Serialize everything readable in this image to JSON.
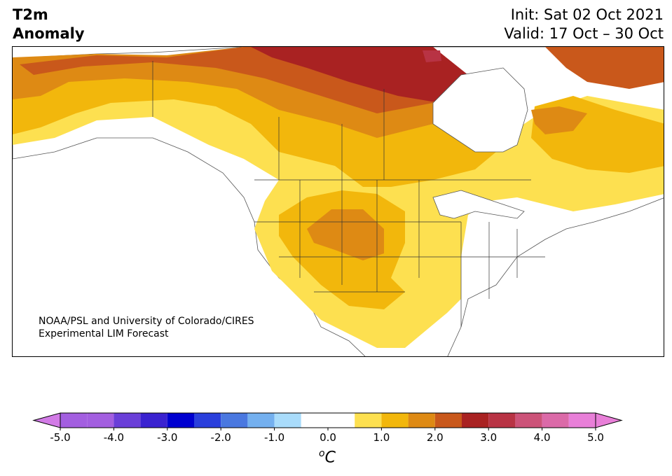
{
  "title": {
    "left_line1": "T2m",
    "left_line2": "Anomaly",
    "right_line1": "Init: Sat 02 Oct 2021",
    "right_line2": "Valid: 17 Oct – 30 Oct"
  },
  "credit": {
    "line1": "NOAA/PSL and University of Colorado/CIRES",
    "line2": "Experimental LIM Forecast"
  },
  "colorbar": {
    "unit_degree": "o",
    "unit_symbol": "C",
    "ticks": [
      "-5.0",
      "-4.0",
      "-3.0",
      "-2.0",
      "-1.0",
      "0.0",
      "1.0",
      "2.0",
      "3.0",
      "4.0",
      "5.0"
    ],
    "under_color": "#d27be6",
    "over_color": "#e87fd8",
    "bins": [
      {
        "from": -5.0,
        "to": -4.5,
        "color": "#a35fe0"
      },
      {
        "from": -4.5,
        "to": -4.0,
        "color": "#a35fe0"
      },
      {
        "from": -4.0,
        "to": -3.5,
        "color": "#6a3fd8"
      },
      {
        "from": -3.5,
        "to": -3.0,
        "color": "#3a22d0"
      },
      {
        "from": -3.0,
        "to": -2.5,
        "color": "#0000d0"
      },
      {
        "from": -2.5,
        "to": -2.0,
        "color": "#2a3fdc"
      },
      {
        "from": -2.0,
        "to": -1.5,
        "color": "#4a78e0"
      },
      {
        "from": -1.5,
        "to": -1.0,
        "color": "#74b0ef"
      },
      {
        "from": -1.0,
        "to": -0.5,
        "color": "#a9dcfb"
      },
      {
        "from": -0.5,
        "to": 0.0,
        "color": "#ffffff"
      },
      {
        "from": 0.0,
        "to": 0.5,
        "color": "#ffffff"
      },
      {
        "from": 0.5,
        "to": 1.0,
        "color": "#fde050"
      },
      {
        "from": 1.0,
        "to": 1.5,
        "color": "#f2b70c"
      },
      {
        "from": 1.5,
        "to": 2.0,
        "color": "#de8a14"
      },
      {
        "from": 2.0,
        "to": 2.5,
        "color": "#c9581b"
      },
      {
        "from": 2.5,
        "to": 3.0,
        "color": "#a92222"
      },
      {
        "from": 3.0,
        "to": 3.5,
        "color": "#b83344"
      },
      {
        "from": 3.5,
        "to": 4.0,
        "color": "#cc5379"
      },
      {
        "from": 4.0,
        "to": 4.5,
        "color": "#db6aa8"
      },
      {
        "from": 4.5,
        "to": 5.0,
        "color": "#e87fd8"
      }
    ]
  }
}
